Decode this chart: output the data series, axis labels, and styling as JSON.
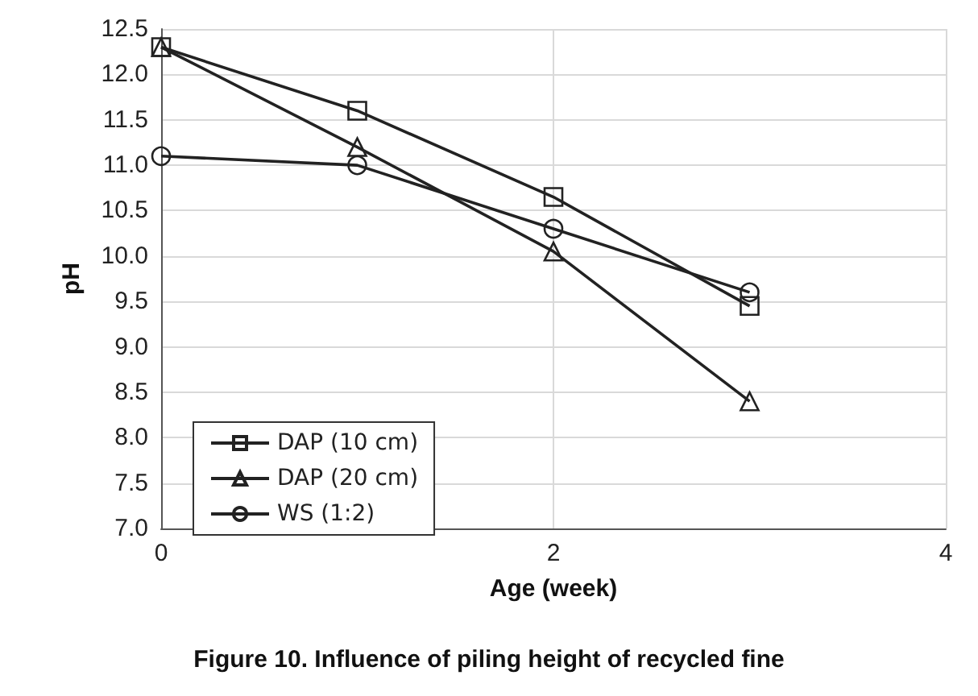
{
  "chart_data": {
    "type": "line",
    "xlabel": "Age (week)",
    "ylabel": "pH",
    "x": [
      0,
      1,
      2,
      3
    ],
    "series": [
      {
        "name": "DAP (10 cm)",
        "color": "#222222",
        "marker": "square",
        "values": [
          12.3,
          11.6,
          10.65,
          9.45
        ]
      },
      {
        "name": "DAP (20 cm)",
        "color": "#222222",
        "marker": "triangle",
        "values": [
          12.3,
          11.2,
          10.05,
          8.4
        ]
      },
      {
        "name": "WS (1:2)",
        "color": "#222222",
        "marker": "circle",
        "values": [
          11.1,
          11.0,
          10.3,
          9.6
        ]
      }
    ],
    "xlim": [
      0,
      4
    ],
    "xticks": [
      0,
      2,
      4
    ],
    "ylim": [
      7,
      12.5
    ],
    "yticks": [
      {
        "value": 7,
        "label": "7.0"
      },
      {
        "value": 7.5,
        "label": "7.5"
      },
      {
        "value": 8,
        "label": "8.0"
      },
      {
        "value": 8.5,
        "label": "8.5"
      },
      {
        "value": 9,
        "label": "9.0"
      },
      {
        "value": 9.5,
        "label": "9.5"
      },
      {
        "value": 10,
        "label": "10.0"
      },
      {
        "value": 10.5,
        "label": "10.5"
      },
      {
        "value": 11,
        "label": "11.0"
      },
      {
        "value": 11.5,
        "label": "11.5"
      },
      {
        "value": 12,
        "label": "12.0"
      },
      {
        "value": 12.5,
        "label": "12.5"
      }
    ],
    "grid": true,
    "legend": "bottom left",
    "line_style": "solid",
    "annotations": [
      "Figure 10. Influence of piling height of recycled fine"
    ]
  }
}
